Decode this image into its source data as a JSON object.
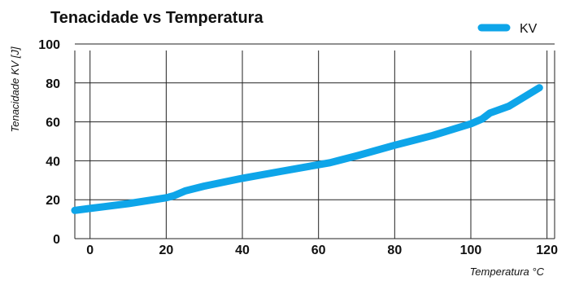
{
  "chart_data": {
    "type": "line",
    "title": "Tenacidade vs Temperatura",
    "xlabel": "Temperatura °C",
    "ylabel": "Tenacidade KV [J]",
    "xlim": [
      -4,
      122
    ],
    "ylim": [
      0,
      105
    ],
    "xticks": [
      0,
      20,
      40,
      60,
      80,
      100,
      120
    ],
    "yticks": [
      0,
      20,
      40,
      60,
      80,
      100
    ],
    "grid": true,
    "legend": "top-right",
    "series": [
      {
        "name": "KV",
        "color": "#0ea5e9",
        "x": [
          -4,
          0,
          10,
          20,
          22,
          25,
          30,
          40,
          50,
          60,
          63,
          65,
          70,
          80,
          90,
          100,
          103,
          105,
          110,
          118
        ],
        "y": [
          14.5,
          15.5,
          18,
          21,
          22,
          24.5,
          27,
          31,
          34.5,
          38,
          39,
          40,
          42.5,
          48,
          53,
          59,
          61.5,
          64.5,
          68,
          77.5
        ]
      }
    ]
  }
}
